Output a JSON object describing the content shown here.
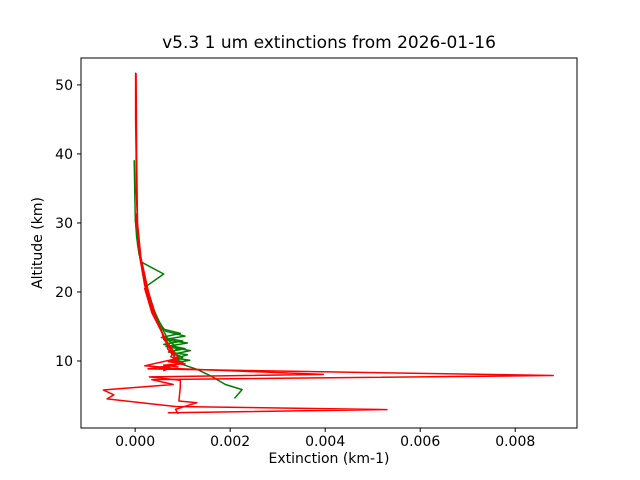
{
  "figure": {
    "background": "#ffffff"
  },
  "chart_data": {
    "type": "line",
    "title": "v5.3 1 um extinctions from 2026-01-16",
    "xlabel": "Extinction (km-1)",
    "ylabel": "Altitude (km)",
    "xlim": [
      -0.00114,
      0.0093
    ],
    "ylim": [
      0.29,
      53.9
    ],
    "grid": false,
    "legend": "none",
    "axis_color": "#000000",
    "xticks": {
      "values": [
        0.0,
        0.002,
        0.004,
        0.006,
        0.008
      ],
      "labels": [
        "0.000",
        "0.002",
        "0.004",
        "0.006",
        "0.008"
      ]
    },
    "yticks": {
      "values": [
        10,
        20,
        30,
        40,
        50
      ],
      "labels": [
        "10",
        "20",
        "30",
        "40",
        "50"
      ]
    },
    "series": [
      {
        "name": "green-profile-1",
        "color": "#008000",
        "linewidth": 1.5,
        "points": [
          [
            0.0,
            30.5
          ],
          [
            8e-05,
            26
          ],
          [
            0.00018,
            22.5
          ],
          [
            0.0003,
            19.5
          ],
          [
            0.00042,
            17
          ],
          [
            0.00055,
            15
          ],
          [
            0.0007,
            13
          ],
          [
            0.0009,
            11.8
          ],
          [
            0.00075,
            11.2
          ],
          [
            0.00095,
            10.7
          ],
          [
            0.0008,
            10.2
          ],
          [
            0.001,
            9.9
          ],
          [
            0.0009,
            9.5
          ]
        ]
      },
      {
        "name": "green-profile-2",
        "color": "#008000",
        "linewidth": 1.5,
        "points": [
          [
            5e-05,
            27
          ],
          [
            0.0002,
            21
          ],
          [
            0.00035,
            18
          ],
          [
            0.0005,
            15.8
          ],
          [
            0.0006,
            14.6
          ],
          [
            0.00095,
            14.0
          ],
          [
            0.00055,
            13.4
          ],
          [
            0.001,
            12.9
          ],
          [
            0.0006,
            12.4
          ],
          [
            0.00105,
            11.8
          ],
          [
            0.0007,
            11.3
          ],
          [
            0.0011,
            10.9
          ],
          [
            0.00085,
            10.4
          ],
          [
            0.00115,
            10.1
          ],
          [
            0.0009,
            9.8
          ]
        ]
      },
      {
        "name": "green-profile-3",
        "color": "#008000",
        "linewidth": 1.5,
        "points": [
          [
            -2e-05,
            39
          ],
          [
            -1e-05,
            35
          ],
          [
            0.0,
            31
          ],
          [
            3e-05,
            28
          ],
          [
            8e-05,
            25.5
          ],
          [
            0.00014,
            24.3
          ],
          [
            0.0006,
            22.6
          ],
          [
            0.00025,
            20.9
          ],
          [
            0.0003,
            19
          ],
          [
            0.0004,
            17
          ],
          [
            0.0005,
            15.5
          ],
          [
            0.00065,
            14.3
          ],
          [
            0.00105,
            13.6
          ],
          [
            0.0006,
            13.1
          ],
          [
            0.0011,
            12.6
          ],
          [
            0.00065,
            12.1
          ],
          [
            0.00116,
            11.5
          ],
          [
            0.0008,
            11
          ],
          [
            0.001,
            10.5
          ],
          [
            0.00085,
            10
          ],
          [
            0.00095,
            9.6
          ],
          [
            0.0013,
            8.8
          ],
          [
            0.0016,
            7.8
          ],
          [
            0.0019,
            6.6
          ],
          [
            0.00225,
            5.85
          ],
          [
            0.0021,
            4.65
          ]
        ]
      },
      {
        "name": "red-profile-1",
        "color": "#ff0000",
        "linewidth": 1.5,
        "points": [
          [
            1e-05,
            51.7
          ],
          [
            1e-05,
            45
          ],
          [
            2e-05,
            40
          ],
          [
            2e-05,
            35
          ],
          [
            4e-05,
            31.5
          ],
          [
            2e-05,
            30.8
          ],
          [
            6e-05,
            28
          ],
          [
            0.0001,
            25
          ],
          [
            0.00018,
            22
          ],
          [
            0.00025,
            20
          ],
          [
            0.00032,
            18
          ],
          [
            0.0004,
            16.5
          ],
          [
            0.0005,
            15
          ],
          [
            0.00058,
            14
          ],
          [
            0.00065,
            13
          ],
          [
            0.0007,
            12.3
          ],
          [
            0.00068,
            11.8
          ],
          [
            0.00078,
            11
          ],
          [
            0.00075,
            10.6
          ],
          [
            0.0009,
            10.2
          ],
          [
            0.0007,
            9.9
          ],
          [
            0.00105,
            9.6
          ],
          [
            0.0006,
            9.4
          ],
          [
            0.0009,
            9.15
          ]
        ]
      },
      {
        "name": "red-profile-2",
        "color": "#ff0000",
        "linewidth": 1.5,
        "points": [
          [
            2e-05,
            51.6
          ],
          [
            3e-05,
            40
          ],
          [
            5e-05,
            30
          ],
          [
            0.00012,
            25
          ],
          [
            0.00028,
            20
          ],
          [
            0.00045,
            16
          ],
          [
            0.0006,
            13.5
          ],
          [
            0.00075,
            11.5
          ],
          [
            0.00085,
            10.3
          ],
          [
            0.0002,
            9.3
          ],
          [
            0.00075,
            9.0
          ],
          [
            0.0006,
            8.6
          ]
        ]
      },
      {
        "name": "red-profile-3",
        "color": "#ff0000",
        "linewidth": 1.5,
        "points": [
          [
            0.0002,
            20.5
          ],
          [
            0.00035,
            17
          ],
          [
            0.0005,
            15
          ],
          [
            0.00065,
            13
          ],
          [
            0.0008,
            11.5
          ],
          [
            0.0009,
            10.5
          ],
          [
            0.00075,
            10.1
          ],
          [
            0.001,
            9.8
          ],
          [
            0.00085,
            9.4
          ],
          [
            0.0005,
            9.0
          ],
          [
            0.00396,
            8.05
          ],
          [
            0.0003,
            7.7
          ],
          [
            0.00095,
            7.2
          ],
          [
            0.00095,
            6.2
          ],
          [
            0.00092,
            4.2
          ],
          [
            0.0013,
            3.95
          ],
          [
            0.00085,
            3.0
          ],
          [
            0.0009,
            2.4
          ]
        ]
      },
      {
        "name": "red-profile-4",
        "color": "#ff0000",
        "linewidth": 1.5,
        "points": [
          [
            8e-05,
            26
          ],
          [
            0.0002,
            21
          ],
          [
            0.0003,
            18.5
          ],
          [
            0.00045,
            16
          ],
          [
            0.00055,
            14.5
          ],
          [
            0.0006,
            13.2
          ],
          [
            0.00072,
            12
          ],
          [
            0.0008,
            11
          ],
          [
            0.00085,
            10.4
          ],
          [
            0.00075,
            10.0
          ],
          [
            0.00095,
            9.7
          ],
          [
            0.0008,
            9.4
          ],
          [
            0.00027,
            8.85
          ],
          [
            0.0088,
            7.9
          ],
          [
            0.00035,
            7.3
          ],
          [
            0.0008,
            6.6
          ],
          [
            -0.00067,
            5.8
          ],
          [
            -0.00045,
            5.1
          ],
          [
            -0.00059,
            4.5
          ],
          [
            0.0002,
            3.9
          ],
          [
            0.00085,
            3.4
          ],
          [
            0.0053,
            2.95
          ],
          [
            0.0007,
            2.5
          ]
        ]
      }
    ]
  }
}
